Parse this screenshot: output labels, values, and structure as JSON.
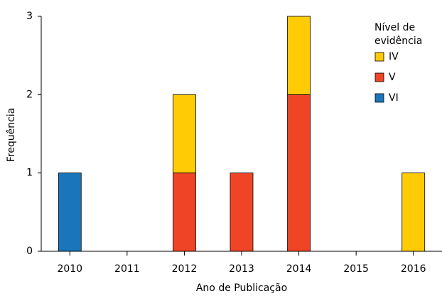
{
  "chart_data": {
    "type": "stacked_bar",
    "xlabel": "Ano de Publicação",
    "ylabel": "Frequência",
    "categories": [
      "2010",
      "2011",
      "2012",
      "2013",
      "2014",
      "2015",
      "2016"
    ],
    "series": [
      {
        "name": "VI",
        "color": "#1b75bb",
        "values": [
          1,
          0,
          0,
          0,
          0,
          0,
          0
        ]
      },
      {
        "name": "V",
        "color": "#ef4526",
        "values": [
          0,
          0,
          1,
          1,
          2,
          0,
          0
        ]
      },
      {
        "name": "IV",
        "color": "#ffcb05",
        "values": [
          0,
          0,
          1,
          0,
          1,
          0,
          1
        ]
      }
    ],
    "legend_title": "Nível de evidência",
    "legend": "upper right",
    "ylim": [
      0,
      3
    ],
    "yticks": [
      0,
      1,
      2,
      3
    ],
    "grid": false
  }
}
